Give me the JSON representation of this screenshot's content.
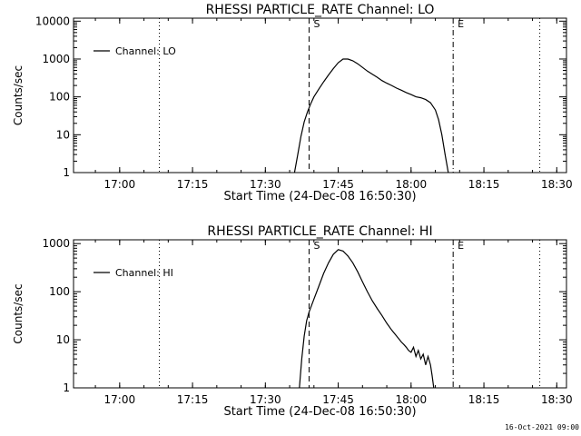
{
  "chart_data": [
    {
      "type": "line",
      "title": "RHESSI PARTICLE_RATE Channel: LO",
      "xlabel": "Start Time (24-Dec-08 16:50:30)",
      "ylabel": "Counts/sec",
      "y_scale": "log",
      "ylim": [
        1,
        12000
      ],
      "x_range": [
        "16:50:30",
        "18:32"
      ],
      "x_tick_labels": [
        "17:00",
        "17:15",
        "17:30",
        "17:45",
        "18:00",
        "18:15",
        "18:30"
      ],
      "y_tick_labels": [
        "1",
        "10",
        "100",
        "1000",
        "10000"
      ],
      "legend": {
        "label": "Channel: LO",
        "placement": "top-left"
      },
      "grid": false,
      "markers": [
        {
          "label": "",
          "time": "17:08:10",
          "style": "dotted"
        },
        {
          "label": "S",
          "time": "17:39:00",
          "style": "dashed"
        },
        {
          "label": "E",
          "time": "18:08:40",
          "style": "dash-dot"
        },
        {
          "label": "",
          "time": "18:26:30",
          "style": "dotted"
        }
      ],
      "series": [
        {
          "name": "Channel: LO",
          "x": [
            "17:36:00",
            "17:36:40",
            "17:37:20",
            "17:38:00",
            "17:38:40",
            "17:39:20",
            "17:40:00",
            "17:41:00",
            "17:42:00",
            "17:43:00",
            "17:44:00",
            "17:45:00",
            "17:46:00",
            "17:47:00",
            "17:48:00",
            "17:49:00",
            "17:50:00",
            "17:51:00",
            "17:52:00",
            "17:53:00",
            "17:54:00",
            "17:55:00",
            "17:56:00",
            "17:57:00",
            "17:58:00",
            "17:59:00",
            "18:00:00",
            "18:01:00",
            "18:02:00",
            "18:03:00",
            "18:04:00",
            "18:05:00",
            "18:05:40",
            "18:06:20",
            "18:07:00",
            "18:07:40"
          ],
          "y": [
            1,
            3,
            9,
            22,
            40,
            65,
            100,
            160,
            250,
            380,
            560,
            800,
            1000,
            1000,
            900,
            750,
            600,
            480,
            400,
            330,
            270,
            230,
            200,
            170,
            150,
            130,
            115,
            100,
            95,
            85,
            70,
            45,
            25,
            10,
            3,
            1
          ]
        }
      ]
    },
    {
      "type": "line",
      "title": "RHESSI PARTICLE_RATE Channel: HI",
      "xlabel": "Start Time (24-Dec-08 16:50:30)",
      "ylabel": "Counts/sec",
      "y_scale": "log",
      "ylim": [
        1,
        1200
      ],
      "x_range": [
        "16:50:30",
        "18:32"
      ],
      "x_tick_labels": [
        "17:00",
        "17:15",
        "17:30",
        "17:45",
        "18:00",
        "18:15",
        "18:30"
      ],
      "y_tick_labels": [
        "1",
        "10",
        "100",
        "1000"
      ],
      "legend": {
        "label": "Channel: HI",
        "placement": "top-left"
      },
      "grid": false,
      "markers": [
        {
          "label": "",
          "time": "17:08:10",
          "style": "dotted"
        },
        {
          "label": "S",
          "time": "17:39:00",
          "style": "dashed"
        },
        {
          "label": "E",
          "time": "18:08:40",
          "style": "dash-dot"
        },
        {
          "label": "",
          "time": "18:26:30",
          "style": "dotted"
        }
      ],
      "series": [
        {
          "name": "Channel: HI",
          "x": [
            "17:37:00",
            "17:37:30",
            "17:38:00",
            "17:38:30",
            "17:39:00",
            "17:40:00",
            "17:41:00",
            "17:42:00",
            "17:43:00",
            "17:44:00",
            "17:45:00",
            "17:46:00",
            "17:47:00",
            "17:48:00",
            "17:49:00",
            "17:50:00",
            "17:51:00",
            "17:52:00",
            "17:53:00",
            "17:54:00",
            "17:55:00",
            "17:56:00",
            "17:57:00",
            "17:58:00",
            "17:58:30",
            "17:59:00",
            "17:59:30",
            "18:00:00",
            "18:00:30",
            "18:01:00",
            "18:01:30",
            "18:02:00",
            "18:02:30",
            "18:03:00",
            "18:03:30",
            "18:04:00",
            "18:04:20",
            "18:04:40"
          ],
          "y": [
            1,
            4,
            12,
            25,
            38,
            70,
            130,
            240,
            400,
            600,
            750,
            700,
            550,
            400,
            260,
            160,
            100,
            65,
            45,
            32,
            22,
            16,
            12,
            9,
            8,
            7,
            6,
            5.5,
            7,
            4.5,
            6,
            4,
            5,
            3,
            4.5,
            3,
            1.8,
            1
          ]
        }
      ]
    }
  ],
  "footer_timestamp": "16-Oct-2021 09:00"
}
